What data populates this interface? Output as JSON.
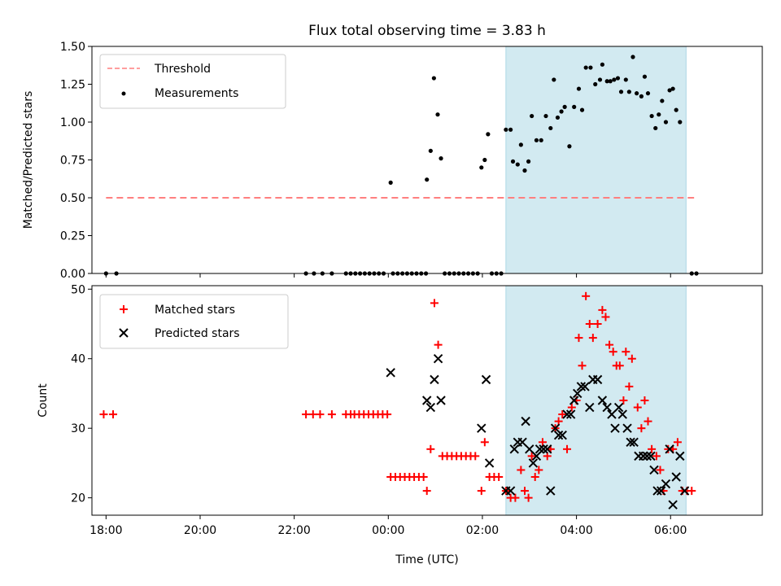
{
  "chart_data": [
    {
      "type": "scatter",
      "title": "Flux total observing time = 3.83 h",
      "xlabel": "",
      "ylabel": "Matched/Predicted stars",
      "xlim": [
        -6.3,
        7.95
      ],
      "ylim": [
        0,
        1.5
      ],
      "yticks": [
        0.0,
        0.25,
        0.5,
        0.75,
        1.0,
        1.25,
        1.5
      ],
      "ytick_labels": [
        "0.00",
        "0.25",
        "0.50",
        "0.75",
        "1.00",
        "1.25",
        "1.50"
      ],
      "xticks": [
        -6,
        -4,
        -2,
        0,
        2,
        4,
        6
      ],
      "shaded_region": {
        "x": [
          2.5,
          6.33
        ],
        "color": "#add8e6"
      },
      "threshold": {
        "y": 0.5,
        "x": [
          -6.0,
          6.5
        ],
        "name": "Threshold",
        "color": "#ff7f7f"
      },
      "legend": {
        "position": "upper-left",
        "entries": [
          "Threshold",
          "Measurements"
        ]
      },
      "series": [
        {
          "name": "Measurements",
          "color": "#000000",
          "points": [
            [
              -6.0,
              0
            ],
            [
              -5.78,
              0
            ],
            [
              -1.75,
              0
            ],
            [
              -1.58,
              0
            ],
            [
              -1.4,
              0
            ],
            [
              -1.2,
              0
            ],
            [
              -0.9,
              0
            ],
            [
              -0.8,
              0
            ],
            [
              -0.7,
              0
            ],
            [
              -0.6,
              0
            ],
            [
              -0.5,
              0
            ],
            [
              -0.4,
              0
            ],
            [
              -0.3,
              0
            ],
            [
              -0.2,
              0
            ],
            [
              -0.1,
              0
            ],
            [
              0.1,
              0
            ],
            [
              0.2,
              0
            ],
            [
              0.3,
              0
            ],
            [
              0.4,
              0
            ],
            [
              0.5,
              0
            ],
            [
              0.6,
              0
            ],
            [
              0.7,
              0
            ],
            [
              0.8,
              0
            ],
            [
              1.2,
              0
            ],
            [
              1.3,
              0
            ],
            [
              1.4,
              0
            ],
            [
              1.5,
              0
            ],
            [
              1.6,
              0
            ],
            [
              1.7,
              0
            ],
            [
              1.8,
              0
            ],
            [
              1.9,
              0
            ],
            [
              2.2,
              0
            ],
            [
              2.3,
              0
            ],
            [
              2.4,
              0
            ],
            [
              6.45,
              0
            ],
            [
              6.55,
              0
            ],
            [
              0.05,
              0.6
            ],
            [
              0.82,
              0.62
            ],
            [
              0.9,
              0.81
            ],
            [
              0.97,
              1.29
            ],
            [
              1.05,
              1.05
            ],
            [
              1.12,
              0.76
            ],
            [
              1.98,
              0.7
            ],
            [
              2.05,
              0.75
            ],
            [
              2.12,
              0.92
            ],
            [
              2.5,
              0.95
            ],
            [
              2.6,
              0.95
            ],
            [
              2.65,
              0.74
            ],
            [
              2.75,
              0.72
            ],
            [
              2.82,
              0.85
            ],
            [
              2.9,
              0.68
            ],
            [
              2.98,
              0.74
            ],
            [
              3.05,
              1.04
            ],
            [
              3.15,
              0.88
            ],
            [
              3.25,
              0.88
            ],
            [
              3.35,
              1.04
            ],
            [
              3.45,
              0.96
            ],
            [
              3.52,
              1.28
            ],
            [
              3.6,
              1.03
            ],
            [
              3.68,
              1.07
            ],
            [
              3.75,
              1.1
            ],
            [
              3.85,
              0.84
            ],
            [
              3.95,
              1.1
            ],
            [
              4.05,
              1.22
            ],
            [
              4.12,
              1.08
            ],
            [
              4.2,
              1.36
            ],
            [
              4.3,
              1.36
            ],
            [
              4.4,
              1.25
            ],
            [
              4.5,
              1.28
            ],
            [
              4.55,
              1.38
            ],
            [
              4.65,
              1.27
            ],
            [
              4.72,
              1.27
            ],
            [
              4.8,
              1.28
            ],
            [
              4.88,
              1.29
            ],
            [
              4.95,
              1.2
            ],
            [
              5.05,
              1.28
            ],
            [
              5.12,
              1.2
            ],
            [
              5.2,
              1.43
            ],
            [
              5.28,
              1.19
            ],
            [
              5.38,
              1.17
            ],
            [
              5.45,
              1.3
            ],
            [
              5.52,
              1.19
            ],
            [
              5.6,
              1.04
            ],
            [
              5.68,
              0.96
            ],
            [
              5.75,
              1.05
            ],
            [
              5.82,
              1.14
            ],
            [
              5.9,
              1.0
            ],
            [
              5.98,
              1.21
            ],
            [
              6.05,
              1.22
            ],
            [
              6.12,
              1.08
            ],
            [
              6.2,
              1.0
            ]
          ]
        }
      ]
    },
    {
      "type": "scatter",
      "title": "",
      "xlabel": "Time (UTC)",
      "ylabel": "Count",
      "xlim": [
        -6.3,
        7.95
      ],
      "ylim": [
        17.5,
        50.5
      ],
      "yticks": [
        20,
        30,
        40,
        50
      ],
      "ytick_labels": [
        "20",
        "30",
        "40",
        "50"
      ],
      "xticks": [
        -6,
        -4,
        -2,
        0,
        2,
        4,
        6
      ],
      "xtick_labels": [
        "18:00",
        "20:00",
        "22:00",
        "00:00",
        "02:00",
        "04:00",
        "06:00"
      ],
      "shaded_region": {
        "x": [
          2.5,
          6.33
        ],
        "color": "#add8e6"
      },
      "legend": {
        "position": "upper-left",
        "entries": [
          "Matched stars",
          "Predicted stars"
        ]
      },
      "series": [
        {
          "name": "Matched stars",
          "marker": "+",
          "color": "#ff0000",
          "points": [
            [
              -6.05,
              32
            ],
            [
              -5.85,
              32
            ],
            [
              -1.75,
              32
            ],
            [
              -1.6,
              32
            ],
            [
              -1.45,
              32
            ],
            [
              -1.2,
              32
            ],
            [
              -0.9,
              32
            ],
            [
              -0.8,
              32
            ],
            [
              -0.72,
              32
            ],
            [
              -0.62,
              32
            ],
            [
              -0.52,
              32
            ],
            [
              -0.42,
              32
            ],
            [
              -0.32,
              32
            ],
            [
              -0.22,
              32
            ],
            [
              -0.12,
              32
            ],
            [
              -0.02,
              32
            ],
            [
              0.05,
              23
            ],
            [
              0.15,
              23
            ],
            [
              0.25,
              23
            ],
            [
              0.35,
              23
            ],
            [
              0.45,
              23
            ],
            [
              0.55,
              23
            ],
            [
              0.65,
              23
            ],
            [
              0.75,
              23
            ],
            [
              0.82,
              21
            ],
            [
              0.9,
              27
            ],
            [
              0.98,
              48
            ],
            [
              1.06,
              42
            ],
            [
              1.15,
              26
            ],
            [
              1.25,
              26
            ],
            [
              1.35,
              26
            ],
            [
              1.45,
              26
            ],
            [
              1.55,
              26
            ],
            [
              1.65,
              26
            ],
            [
              1.75,
              26
            ],
            [
              1.85,
              26
            ],
            [
              1.98,
              21
            ],
            [
              2.05,
              28
            ],
            [
              2.15,
              23
            ],
            [
              2.25,
              23
            ],
            [
              2.35,
              23
            ],
            [
              2.5,
              21
            ],
            [
              2.6,
              20
            ],
            [
              2.7,
              20
            ],
            [
              2.82,
              24
            ],
            [
              2.9,
              21
            ],
            [
              2.98,
              20
            ],
            [
              3.05,
              26
            ],
            [
              3.12,
              23
            ],
            [
              3.2,
              24
            ],
            [
              3.28,
              28
            ],
            [
              3.38,
              26
            ],
            [
              3.45,
              27
            ],
            [
              3.55,
              30
            ],
            [
              3.62,
              31
            ],
            [
              3.7,
              32
            ],
            [
              3.8,
              27
            ],
            [
              3.9,
              33
            ],
            [
              4.0,
              34
            ],
            [
              4.05,
              43
            ],
            [
              4.12,
              39
            ],
            [
              4.2,
              49
            ],
            [
              4.28,
              45
            ],
            [
              4.35,
              43
            ],
            [
              4.45,
              45
            ],
            [
              4.55,
              47
            ],
            [
              4.62,
              46
            ],
            [
              4.7,
              42
            ],
            [
              4.78,
              41
            ],
            [
              4.85,
              39
            ],
            [
              4.92,
              39
            ],
            [
              5.0,
              34
            ],
            [
              5.05,
              41
            ],
            [
              5.12,
              36
            ],
            [
              5.18,
              40
            ],
            [
              5.3,
              33
            ],
            [
              5.38,
              30
            ],
            [
              5.45,
              34
            ],
            [
              5.52,
              31
            ],
            [
              5.6,
              27
            ],
            [
              5.7,
              26
            ],
            [
              5.78,
              24
            ],
            [
              5.85,
              21
            ],
            [
              5.95,
              27
            ],
            [
              6.05,
              27
            ],
            [
              6.15,
              28
            ],
            [
              6.25,
              21
            ],
            [
              6.35,
              21
            ],
            [
              6.45,
              21
            ]
          ]
        },
        {
          "name": "Predicted stars",
          "marker": "x",
          "color": "#000000",
          "points": [
            [
              0.05,
              38
            ],
            [
              0.82,
              34
            ],
            [
              0.9,
              33
            ],
            [
              0.98,
              37
            ],
            [
              1.06,
              40
            ],
            [
              1.12,
              34
            ],
            [
              1.98,
              30
            ],
            [
              2.08,
              37
            ],
            [
              2.15,
              25
            ],
            [
              2.5,
              21
            ],
            [
              2.6,
              21
            ],
            [
              2.68,
              27
            ],
            [
              2.75,
              28
            ],
            [
              2.85,
              28
            ],
            [
              2.92,
              31
            ],
            [
              3.0,
              27
            ],
            [
              3.08,
              25
            ],
            [
              3.15,
              26
            ],
            [
              3.22,
              27
            ],
            [
              3.3,
              27
            ],
            [
              3.38,
              27
            ],
            [
              3.45,
              21
            ],
            [
              3.55,
              30
            ],
            [
              3.62,
              29
            ],
            [
              3.7,
              29
            ],
            [
              3.8,
              32
            ],
            [
              3.88,
              32
            ],
            [
              3.95,
              34
            ],
            [
              4.02,
              35
            ],
            [
              4.1,
              36
            ],
            [
              4.18,
              36
            ],
            [
              4.28,
              33
            ],
            [
              4.35,
              37
            ],
            [
              4.45,
              37
            ],
            [
              4.55,
              34
            ],
            [
              4.65,
              33
            ],
            [
              4.75,
              32
            ],
            [
              4.82,
              30
            ],
            [
              4.9,
              33
            ],
            [
              4.98,
              32
            ],
            [
              5.08,
              30
            ],
            [
              5.15,
              28
            ],
            [
              5.22,
              28
            ],
            [
              5.32,
              26
            ],
            [
              5.42,
              26
            ],
            [
              5.5,
              26
            ],
            [
              5.58,
              26
            ],
            [
              5.65,
              24
            ],
            [
              5.72,
              21
            ],
            [
              5.8,
              21
            ],
            [
              5.9,
              22
            ],
            [
              5.98,
              27
            ],
            [
              6.05,
              19
            ],
            [
              6.12,
              23
            ],
            [
              6.2,
              26
            ],
            [
              6.3,
              21
            ]
          ]
        }
      ]
    }
  ]
}
